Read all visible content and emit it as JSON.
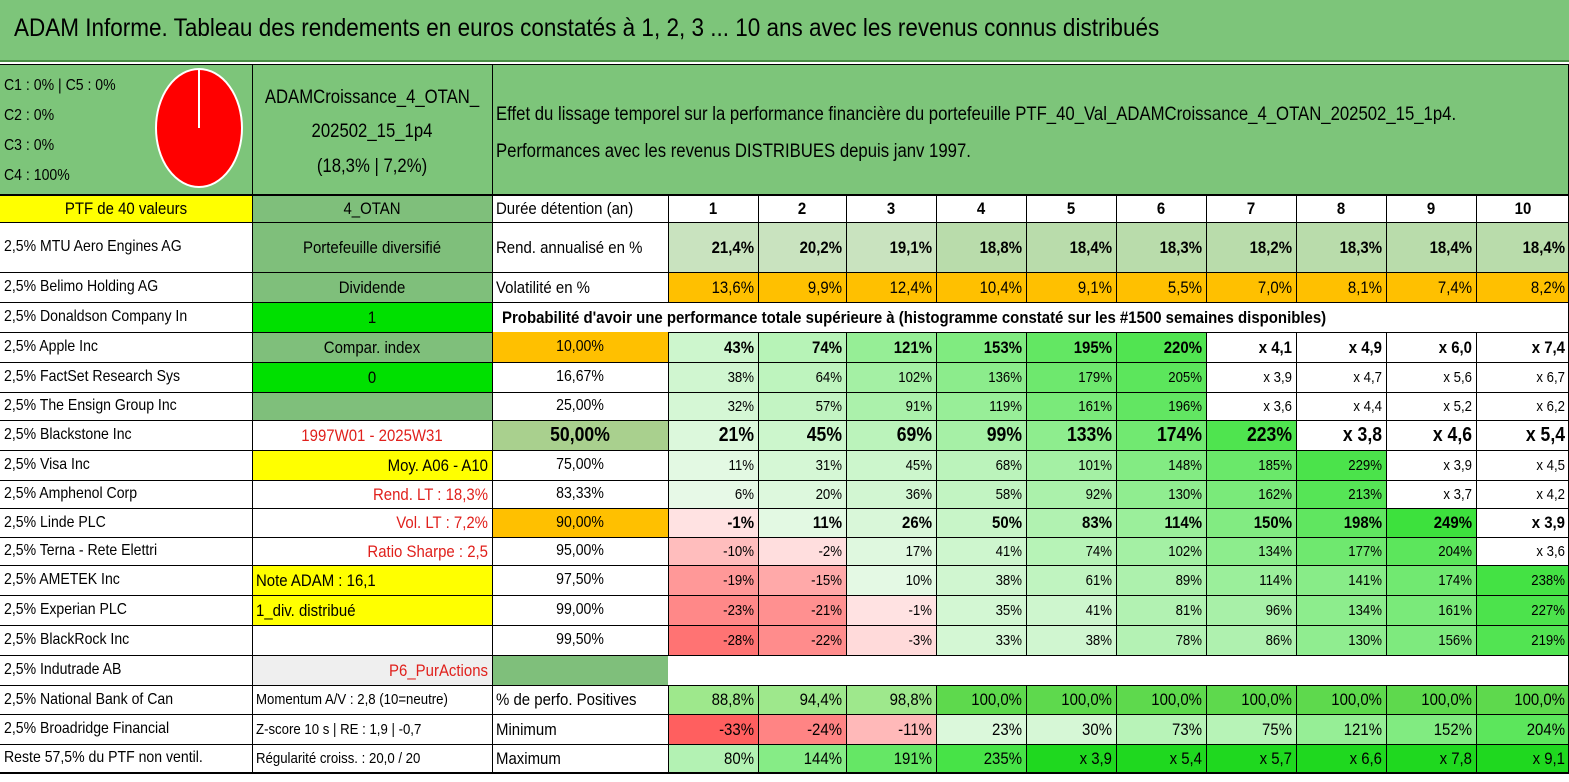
{
  "title": "ADAM Informe. Tableau des rendements en euros constatés à 1, 2, 3 ... 10 ans avec les revenus connus distribués",
  "allocation": {
    "lines": [
      "C1 : 0% | C5 : 0%",
      "C2 : 0%",
      "C3 : 0%",
      "C4 : 100%"
    ],
    "pie_color": "#ff0000",
    "pie_values": {
      "C1": 0,
      "C2": 0,
      "C3": 0,
      "C4": 100,
      "C5": 0
    }
  },
  "portfolio": {
    "name_line1": "ADAMCroissance_4_OTAN_",
    "name_line2": "202502_15_1p4",
    "name_line3": "(18,3% | 7,2%)"
  },
  "description": {
    "line1": "Effet du lissage temporel sur la performance financière du portefeuille PTF_40_Val_ADAMCroissance_4_OTAN_202502_15_1p4.",
    "line2": "Performances avec les revenus DISTRIBUES depuis janv 1997."
  },
  "holdings_header": "PTF de 40 valeurs",
  "holdings": [
    "2,5% MTU Aero Engines AG",
    "2,5% Belimo Holding AG",
    "2,5% Donaldson Company In",
    "2,5% Apple Inc",
    "2,5% FactSet Research Sys",
    "2,5% The Ensign Group Inc",
    "2,5% Blackstone Inc",
    "2,5% Visa Inc",
    "2,5% Amphenol Corp",
    "2,5% Linde PLC",
    "2,5% Terna - Rete Elettri",
    "2,5% AMETEK Inc",
    "2,5% Experian PLC",
    "2,5% BlackRock Inc",
    "2,5% Indutrade AB",
    "2,5% National Bank of Can",
    "2,5% Broadridge Financial",
    "Reste 57,5% du PTF non ventil."
  ],
  "info_column": [
    {
      "text": "4_OTAN"
    },
    {
      "text": "Portefeuille diversifié"
    },
    {
      "text": "Dividende"
    },
    {
      "text": "1"
    },
    {
      "text": "Compar. index"
    },
    {
      "text": "0"
    },
    {
      "text": ""
    },
    {
      "text": "1997W01 - 2025W31"
    },
    {
      "text": "Moy. A06 - A10"
    },
    {
      "text": "Rend. LT : 18,3%"
    },
    {
      "text": "Vol. LT : 7,2%"
    },
    {
      "text": "Ratio Sharpe : 2,5"
    },
    {
      "text": "Note ADAM : 16,1"
    },
    {
      "text": "1_div. distribué"
    },
    {
      "text": ""
    },
    {
      "text": "P6_PurActions"
    },
    {
      "text": "Momentum A/V : 2,8 (10=neutre)"
    },
    {
      "text": "Z-score 10 s | RE : 1,9 | -0,7"
    },
    {
      "text": "Régularité croiss. : 20,0 / 20"
    }
  ],
  "duration_label": "Durée détention (an)",
  "years": [
    "1",
    "2",
    "3",
    "4",
    "5",
    "6",
    "7",
    "8",
    "9",
    "10"
  ],
  "annualized": {
    "label": "Rend. annualisé en %",
    "values": [
      "21,4%",
      "20,2%",
      "19,1%",
      "18,8%",
      "18,4%",
      "18,3%",
      "18,2%",
      "18,3%",
      "18,4%",
      "18,4%"
    ]
  },
  "volatility": {
    "label": "Volatilité en %",
    "values": [
      "13,6%",
      "9,9%",
      "12,4%",
      "10,4%",
      "9,1%",
      "5,5%",
      "7,0%",
      "8,1%",
      "7,4%",
      "8,2%"
    ]
  },
  "probability_title": "Probabilité d'avoir une performance totale supérieure à (histogramme constaté sur les #1500 semaines disponibles)",
  "probability_rows": [
    {
      "p": "10,00%",
      "values": [
        "43%",
        "74%",
        "121%",
        "153%",
        "195%",
        "220%",
        "x 4,1",
        "x 4,9",
        "x 6,0",
        "x 7,4"
      ]
    },
    {
      "p": "16,67%",
      "values": [
        "38%",
        "64%",
        "102%",
        "136%",
        "179%",
        "205%",
        "x 3,9",
        "x 4,7",
        "x 5,6",
        "x 6,7"
      ]
    },
    {
      "p": "25,00%",
      "values": [
        "32%",
        "57%",
        "91%",
        "119%",
        "161%",
        "196%",
        "x 3,6",
        "x 4,4",
        "x 5,2",
        "x 6,2"
      ]
    },
    {
      "p": "50,00%",
      "values": [
        "21%",
        "45%",
        "69%",
        "99%",
        "133%",
        "174%",
        "223%",
        "x 3,8",
        "x 4,6",
        "x 5,4"
      ]
    },
    {
      "p": "75,00%",
      "values": [
        "11%",
        "31%",
        "45%",
        "68%",
        "101%",
        "148%",
        "185%",
        "229%",
        "x 3,9",
        "x 4,5"
      ]
    },
    {
      "p": "83,33%",
      "values": [
        "6%",
        "20%",
        "36%",
        "58%",
        "92%",
        "130%",
        "162%",
        "213%",
        "x 3,7",
        "x 4,2"
      ]
    },
    {
      "p": "90,00%",
      "values": [
        "-1%",
        "11%",
        "26%",
        "50%",
        "83%",
        "114%",
        "150%",
        "198%",
        "249%",
        "x 3,9"
      ]
    },
    {
      "p": "95,00%",
      "values": [
        "-10%",
        "-2%",
        "17%",
        "41%",
        "74%",
        "102%",
        "134%",
        "177%",
        "204%",
        "x 3,6"
      ]
    },
    {
      "p": "97,50%",
      "values": [
        "-19%",
        "-15%",
        "10%",
        "38%",
        "61%",
        "89%",
        "114%",
        "141%",
        "174%",
        "238%"
      ]
    },
    {
      "p": "99,00%",
      "values": [
        "-23%",
        "-21%",
        "-1%",
        "35%",
        "41%",
        "81%",
        "96%",
        "134%",
        "161%",
        "227%"
      ]
    },
    {
      "p": "99,50%",
      "values": [
        "-28%",
        "-22%",
        "-3%",
        "33%",
        "38%",
        "78%",
        "86%",
        "130%",
        "156%",
        "219%"
      ]
    }
  ],
  "positive": {
    "label": "% de perfo. Positives",
    "values": [
      "88,8%",
      "94,4%",
      "98,8%",
      "100,0%",
      "100,0%",
      "100,0%",
      "100,0%",
      "100,0%",
      "100,0%",
      "100,0%"
    ]
  },
  "minimum": {
    "label": "Minimum",
    "values": [
      "-33%",
      "-24%",
      "-11%",
      "23%",
      "30%",
      "73%",
      "75%",
      "121%",
      "152%",
      "204%"
    ]
  },
  "maximum": {
    "label": "Maximum",
    "values": [
      "80%",
      "144%",
      "191%",
      "235%",
      "x 3,9",
      "x 5,4",
      "x 5,7",
      "x 6,6",
      "x 7,8",
      "x 9,1"
    ]
  },
  "colors": {
    "header_green": "#7dc57a",
    "yellow": "#ffff00",
    "orange": "#ffc000",
    "bright_green": "#00e000",
    "gray_green": "#7fbf7b",
    "red_text": "#e0201c"
  }
}
